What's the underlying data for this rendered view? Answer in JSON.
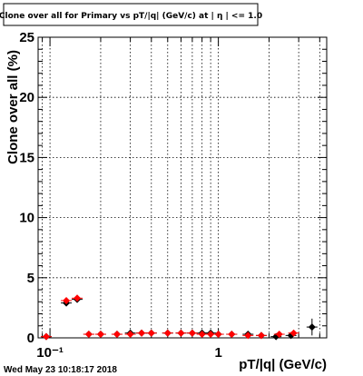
{
  "chart_data": {
    "type": "scatter",
    "title": "Clone  over all for Primary vs pT/|q| (GeV/c) at |  η | <= 1.0",
    "xlabel": "pT/|q| (GeV/c)",
    "ylabel": "Clone  over all (%)",
    "xscale": "log",
    "xlim": [
      0.085,
      4.4
    ],
    "ylim": [
      0,
      25
    ],
    "x_ticks": [
      {
        "value": 0.1,
        "label": "10⁻¹"
      },
      {
        "value": 1,
        "label": "1"
      }
    ],
    "y_ticks": [
      0,
      5,
      10,
      15,
      20,
      25
    ],
    "grid": true,
    "series": [
      {
        "color": "#000000",
        "marker": "diamond",
        "x": [
          0.095,
          0.125,
          0.145,
          0.17,
          0.2,
          0.25,
          0.3,
          0.35,
          0.4,
          0.5,
          0.6,
          0.7,
          0.8,
          0.9,
          1.0,
          1.2,
          1.5,
          1.8,
          2.2,
          2.7,
          3.6
        ],
        "y": [
          0.1,
          2.9,
          3.2,
          0.3,
          0.3,
          0.3,
          0.4,
          0.4,
          0.4,
          0.4,
          0.4,
          0.4,
          0.4,
          0.4,
          0.3,
          0.3,
          0.3,
          0.2,
          0.1,
          0.2,
          0.9
        ],
        "yerr": [
          0.05,
          0.2,
          0.2,
          0.05,
          0.05,
          0.05,
          0.05,
          0.05,
          0.05,
          0.05,
          0.05,
          0.05,
          0.05,
          0.05,
          0.05,
          0.05,
          0.05,
          0.05,
          0.05,
          0.1,
          0.7
        ]
      },
      {
        "color": "#ff0000",
        "marker": "diamond",
        "x": [
          0.095,
          0.125,
          0.145,
          0.17,
          0.2,
          0.25,
          0.3,
          0.35,
          0.4,
          0.5,
          0.6,
          0.7,
          0.8,
          0.9,
          1.0,
          1.2,
          1.5,
          1.8,
          2.3,
          2.8
        ],
        "y": [
          0.1,
          3.1,
          3.3,
          0.3,
          0.3,
          0.3,
          0.3,
          0.4,
          0.4,
          0.4,
          0.4,
          0.4,
          0.3,
          0.3,
          0.3,
          0.3,
          0.2,
          0.2,
          0.3,
          0.4
        ],
        "yerr": [
          0.05,
          0.2,
          0.2,
          0.05,
          0.05,
          0.05,
          0.05,
          0.05,
          0.05,
          0.05,
          0.05,
          0.05,
          0.05,
          0.05,
          0.05,
          0.05,
          0.05,
          0.05,
          0.05,
          0.1
        ]
      }
    ]
  },
  "footer": {
    "date": "Wed May 23 10:18:17 2018"
  }
}
